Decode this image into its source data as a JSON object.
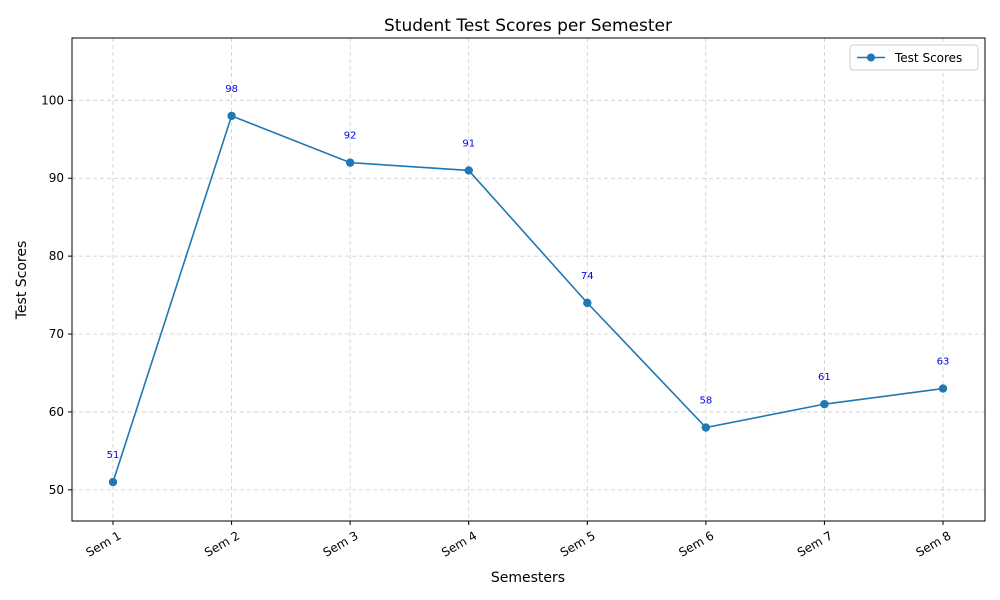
{
  "chart_data": {
    "type": "line",
    "title": "Student Test Scores per Semester",
    "xlabel": "Semesters",
    "ylabel": "Test Scores",
    "categories": [
      "Sem 1",
      "Sem 2",
      "Sem 3",
      "Sem 4",
      "Sem 5",
      "Sem 6",
      "Sem 7",
      "Sem 8"
    ],
    "series": [
      {
        "name": "Test Scores",
        "values": [
          51,
          98,
          92,
          91,
          74,
          58,
          61,
          63
        ],
        "color": "#1f77b4",
        "marker": "circle"
      }
    ],
    "data_labels": [
      "51",
      "98",
      "92",
      "91",
      "74",
      "58",
      "61",
      "63"
    ],
    "data_label_color": "#0000ee",
    "ylim": [
      46,
      108
    ],
    "yticks": [
      50,
      60,
      70,
      80,
      90,
      100
    ],
    "ytick_labels": [
      "50",
      "60",
      "70",
      "80",
      "90",
      "100"
    ],
    "grid": true,
    "legend_position": "top-right"
  }
}
